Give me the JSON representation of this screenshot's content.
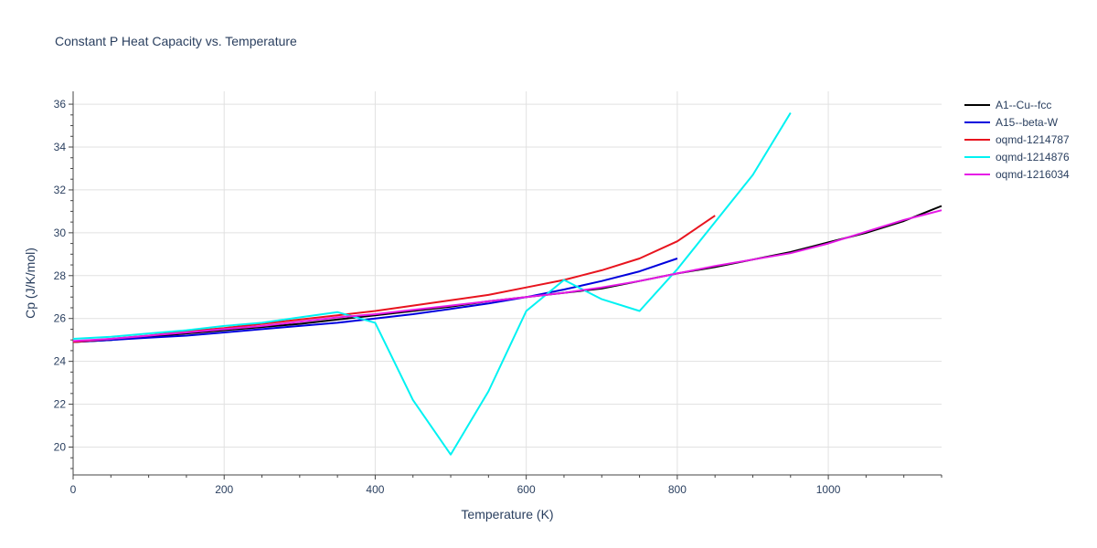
{
  "chart_data": {
    "type": "line",
    "title": "Constant P Heat Capacity vs. Temperature",
    "xlabel": "Temperature (K)",
    "ylabel": "Cp (J/K/mol)",
    "xlim": [
      0,
      1150
    ],
    "ylim": [
      18.7,
      36.6
    ],
    "xticks": [
      0,
      200,
      400,
      600,
      800,
      1000
    ],
    "yticks": [
      20,
      22,
      24,
      26,
      28,
      30,
      32,
      34,
      36
    ],
    "grid": true,
    "legend_position": "top-right",
    "series": [
      {
        "name": "A1--Cu--fcc",
        "color": "#000000",
        "x": [
          0,
          50,
          100,
          150,
          200,
          250,
          300,
          350,
          400,
          450,
          500,
          550,
          600,
          650,
          700,
          750,
          800,
          850,
          900,
          950,
          1000,
          1050,
          1100,
          1150
        ],
        "y": [
          24.9,
          25.0,
          25.15,
          25.3,
          25.45,
          25.6,
          25.75,
          25.95,
          26.15,
          26.35,
          26.55,
          26.8,
          27.0,
          27.2,
          27.4,
          27.75,
          28.1,
          28.4,
          28.75,
          29.1,
          29.55,
          30.0,
          30.55,
          31.25
        ]
      },
      {
        "name": "A15--beta-W",
        "color": "#0000dd",
        "x": [
          0,
          50,
          100,
          150,
          200,
          250,
          300,
          350,
          400,
          450,
          500,
          550,
          600,
          650,
          700,
          750,
          800
        ],
        "y": [
          24.9,
          25.0,
          25.1,
          25.2,
          25.35,
          25.5,
          25.65,
          25.8,
          26.0,
          26.2,
          26.45,
          26.7,
          27.0,
          27.35,
          27.75,
          28.2,
          28.8
        ]
      },
      {
        "name": "oqmd-1214787",
        "color": "#e8141e",
        "x": [
          0,
          50,
          100,
          150,
          200,
          250,
          300,
          350,
          400,
          450,
          500,
          550,
          600,
          650,
          700,
          750,
          800,
          850
        ],
        "y": [
          24.9,
          25.05,
          25.2,
          25.4,
          25.55,
          25.75,
          25.95,
          26.15,
          26.35,
          26.6,
          26.85,
          27.1,
          27.45,
          27.8,
          28.25,
          28.8,
          29.6,
          30.8
        ]
      },
      {
        "name": "oqmd-1214876",
        "color": "#00f2f2",
        "x": [
          0,
          50,
          100,
          150,
          200,
          250,
          300,
          350,
          400,
          450,
          500,
          550,
          600,
          650,
          700,
          750,
          800,
          850,
          900,
          950
        ],
        "y": [
          25.05,
          25.15,
          25.3,
          25.45,
          25.65,
          25.8,
          26.05,
          26.3,
          25.8,
          22.2,
          19.65,
          22.6,
          26.35,
          27.8,
          26.9,
          26.35,
          28.3,
          30.5,
          32.7,
          35.6
        ]
      },
      {
        "name": "oqmd-1216034",
        "color": "#e619e6",
        "x": [
          0,
          50,
          100,
          150,
          200,
          250,
          300,
          350,
          400,
          450,
          500,
          550,
          600,
          650,
          700,
          750,
          800,
          850,
          900,
          950,
          1000,
          1050,
          1100,
          1150
        ],
        "y": [
          24.95,
          25.05,
          25.2,
          25.35,
          25.5,
          25.65,
          25.85,
          26.05,
          26.2,
          26.4,
          26.6,
          26.8,
          27.0,
          27.2,
          27.45,
          27.75,
          28.1,
          28.45,
          28.75,
          29.05,
          29.5,
          30.05,
          30.6,
          31.05
        ]
      }
    ]
  }
}
